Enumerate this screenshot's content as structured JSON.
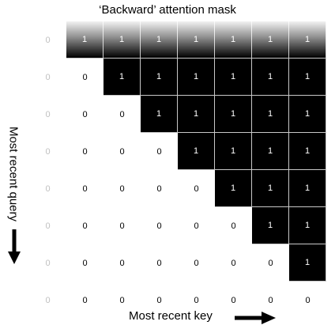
{
  "title": "‘Backward’ attention mask",
  "ylabel": "Most recent query",
  "xlabel": "Most recent key",
  "colors": {
    "one_cell": "#000000",
    "grid_line": "#c8c8c8",
    "faded_text": "#c0c0c0"
  },
  "chart_data": {
    "type": "heatmap",
    "title": "‘Backward’ attention mask",
    "xlabel": "Most recent key",
    "ylabel": "Most recent query",
    "matrix": [
      [
        0,
        1,
        1,
        1,
        1,
        1,
        1,
        1
      ],
      [
        0,
        0,
        1,
        1,
        1,
        1,
        1,
        1
      ],
      [
        0,
        0,
        0,
        1,
        1,
        1,
        1,
        1
      ],
      [
        0,
        0,
        0,
        0,
        1,
        1,
        1,
        1
      ],
      [
        0,
        0,
        0,
        0,
        0,
        1,
        1,
        1
      ],
      [
        0,
        0,
        0,
        0,
        0,
        0,
        1,
        1
      ],
      [
        0,
        0,
        0,
        0,
        0,
        0,
        0,
        1
      ],
      [
        0,
        0,
        0,
        0,
        0,
        0,
        0,
        0
      ]
    ]
  }
}
